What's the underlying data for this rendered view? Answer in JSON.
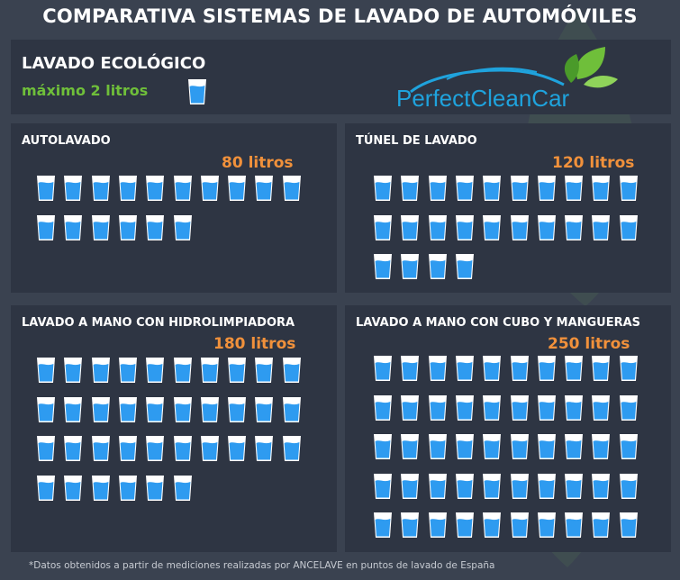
{
  "title": "COMPARATIVA SISTEMAS DE LAVADO DE AUTOMÓVILES",
  "eco": {
    "title": "LAVADO ECOLÓGICO",
    "subtitle": "máximo  2 litros",
    "glasses": 1
  },
  "logo": {
    "text": "PerfectCleanCar"
  },
  "colors": {
    "background": "#3a4250",
    "panel": "#2e3543",
    "water": "#2e9bf0",
    "amount": "#f1913b",
    "eco": "#6fbf3a"
  },
  "chart_data": {
    "type": "pictogram",
    "unit": "litros",
    "categories": [
      "AUTOLAVADO",
      "TÚNEL DE LAVADO",
      "LAVADO A MANO CON HIDROLIMPIADORA",
      "LAVADO A MANO CON CUBO Y MANGUERAS"
    ],
    "values": [
      80,
      120,
      180,
      250
    ],
    "labels": [
      "80 litros",
      "120 litros",
      "180 litros",
      "250 litros"
    ],
    "glasses": [
      16,
      24,
      36,
      50
    ]
  },
  "footnote": "*Datos obtenidos a partir de mediciones realizadas por ANCELAVE en puntos de lavado de España"
}
